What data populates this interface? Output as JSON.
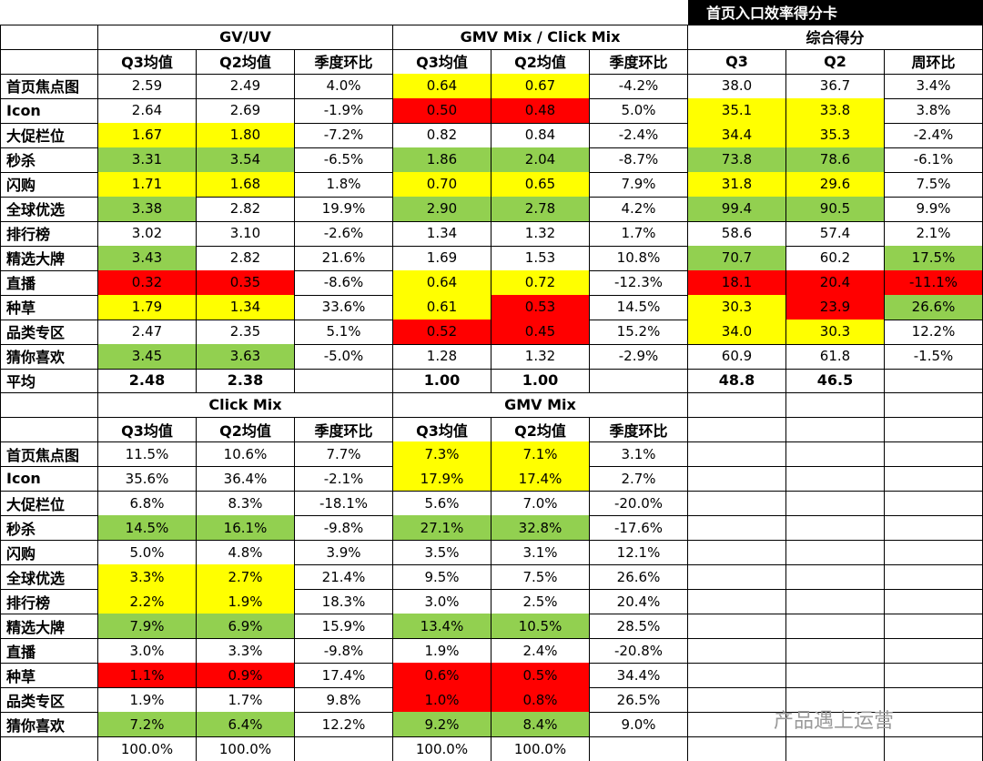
{
  "title": "首页入口效率得分卡",
  "top": {
    "groups": [
      "GV/UV",
      "GMV Mix / Click Mix",
      "综合得分"
    ],
    "subheaders": [
      "Q3均值",
      "Q2均值",
      "季度环比",
      "Q3均值",
      "Q2均值",
      "季度环比",
      "Q3",
      "Q2",
      "周环比"
    ],
    "rows": [
      {
        "label": "首页焦点图",
        "cells": [
          "2.59",
          "2.49",
          "4.0%",
          "0.64",
          "0.67",
          "-4.2%",
          "38.0",
          "36.7",
          "3.4%"
        ],
        "fills": [
          null,
          null,
          null,
          "#ffff00",
          "#ffff00",
          null,
          null,
          null,
          null
        ]
      },
      {
        "label": "Icon",
        "cells": [
          "2.64",
          "2.69",
          "-1.9%",
          "0.50",
          "0.48",
          "5.0%",
          "35.1",
          "33.8",
          "3.8%"
        ],
        "fills": [
          null,
          null,
          null,
          "#ff0000",
          "#ff0000",
          null,
          "#ffff00",
          "#ffff00",
          null
        ]
      },
      {
        "label": "大促栏位",
        "cells": [
          "1.67",
          "1.80",
          "-7.2%",
          "0.82",
          "0.84",
          "-2.4%",
          "34.4",
          "35.3",
          "-2.4%"
        ],
        "fills": [
          "#ffff00",
          "#ffff00",
          null,
          null,
          null,
          null,
          "#ffff00",
          "#ffff00",
          null
        ]
      },
      {
        "label": "秒杀",
        "cells": [
          "3.31",
          "3.54",
          "-6.5%",
          "1.86",
          "2.04",
          "-8.7%",
          "73.8",
          "78.6",
          "-6.1%"
        ],
        "fills": [
          "#92d050",
          "#92d050",
          null,
          "#92d050",
          "#92d050",
          null,
          "#92d050",
          "#92d050",
          null
        ]
      },
      {
        "label": "闪购",
        "cells": [
          "1.71",
          "1.68",
          "1.8%",
          "0.70",
          "0.65",
          "7.9%",
          "31.8",
          "29.6",
          "7.5%"
        ],
        "fills": [
          "#ffff00",
          "#ffff00",
          null,
          "#ffff00",
          "#ffff00",
          null,
          "#ffff00",
          "#ffff00",
          null
        ]
      },
      {
        "label": "全球优选",
        "cells": [
          "3.38",
          "2.82",
          "19.9%",
          "2.90",
          "2.78",
          "4.2%",
          "99.4",
          "90.5",
          "9.9%"
        ],
        "fills": [
          "#92d050",
          null,
          null,
          "#92d050",
          "#92d050",
          null,
          "#92d050",
          "#92d050",
          null
        ]
      },
      {
        "label": "排行榜",
        "cells": [
          "3.02",
          "3.10",
          "-2.6%",
          "1.34",
          "1.32",
          "1.7%",
          "58.6",
          "57.4",
          "2.1%"
        ],
        "fills": [
          null,
          null,
          null,
          null,
          null,
          null,
          null,
          null,
          null
        ]
      },
      {
        "label": "精选大牌",
        "cells": [
          "3.43",
          "2.82",
          "21.6%",
          "1.69",
          "1.53",
          "10.8%",
          "70.7",
          "60.2",
          "17.5%"
        ],
        "fills": [
          "#92d050",
          null,
          null,
          null,
          null,
          null,
          "#92d050",
          null,
          "#92d050"
        ]
      },
      {
        "label": "直播",
        "cells": [
          "0.32",
          "0.35",
          "-8.6%",
          "0.64",
          "0.72",
          "-12.3%",
          "18.1",
          "20.4",
          "-11.1%"
        ],
        "fills": [
          "#ff0000",
          "#ff0000",
          null,
          "#ffff00",
          "#ffff00",
          null,
          "#ff0000",
          "#ff0000",
          "#ff0000"
        ]
      },
      {
        "label": "种草",
        "cells": [
          "1.79",
          "1.34",
          "33.6%",
          "0.61",
          "0.53",
          "14.5%",
          "30.3",
          "23.9",
          "26.6%"
        ],
        "fills": [
          "#ffff00",
          "#ffff00",
          null,
          "#ffff00",
          "#ff0000",
          null,
          "#ffff00",
          "#ff0000",
          "#92d050"
        ]
      },
      {
        "label": "品类专区",
        "cells": [
          "2.47",
          "2.35",
          "5.1%",
          "0.52",
          "0.45",
          "15.2%",
          "34.0",
          "30.3",
          "12.2%"
        ],
        "fills": [
          null,
          null,
          null,
          "#ff0000",
          "#ff0000",
          null,
          "#ffff00",
          "#ffff00",
          null
        ]
      },
      {
        "label": "猜你喜欢",
        "cells": [
          "3.45",
          "3.63",
          "-5.0%",
          "1.28",
          "1.32",
          "-2.9%",
          "60.9",
          "61.8",
          "-1.5%"
        ],
        "fills": [
          "#92d050",
          "#92d050",
          null,
          null,
          null,
          null,
          null,
          null,
          null
        ]
      }
    ],
    "average": {
      "label": "平均",
      "cells": [
        "2.48",
        "2.38",
        null,
        "1.00",
        "1.00",
        null,
        "48.8",
        "46.5",
        null
      ]
    }
  },
  "bottom": {
    "groups": [
      "Click Mix",
      "GMV Mix"
    ],
    "subheaders": [
      "Q3均值",
      "Q2均值",
      "季度环比",
      "Q3均值",
      "Q2均值",
      "季度环比"
    ],
    "rows": [
      {
        "label": "首页焦点图",
        "cells": [
          "11.5%",
          "10.6%",
          "7.7%",
          "7.3%",
          "7.1%",
          "3.1%"
        ],
        "fills": [
          null,
          null,
          null,
          "#ffff00",
          "#ffff00",
          null
        ]
      },
      {
        "label": "Icon",
        "cells": [
          "35.6%",
          "36.4%",
          "-2.1%",
          "17.9%",
          "17.4%",
          "2.7%"
        ],
        "fills": [
          null,
          null,
          null,
          "#ffff00",
          "#ffff00",
          null
        ]
      },
      {
        "label": "大促栏位",
        "cells": [
          "6.8%",
          "8.3%",
          "-18.1%",
          "5.6%",
          "7.0%",
          "-20.0%"
        ],
        "fills": [
          null,
          null,
          null,
          null,
          null,
          null
        ]
      },
      {
        "label": "秒杀",
        "cells": [
          "14.5%",
          "16.1%",
          "-9.8%",
          "27.1%",
          "32.8%",
          "-17.6%"
        ],
        "fills": [
          "#92d050",
          "#92d050",
          null,
          "#92d050",
          "#92d050",
          null
        ]
      },
      {
        "label": "闪购",
        "cells": [
          "5.0%",
          "4.8%",
          "3.9%",
          "3.5%",
          "3.1%",
          "12.1%"
        ],
        "fills": [
          null,
          null,
          null,
          null,
          null,
          null
        ]
      },
      {
        "label": "全球优选",
        "cells": [
          "3.3%",
          "2.7%",
          "21.4%",
          "9.5%",
          "7.5%",
          "26.6%"
        ],
        "fills": [
          "#ffff00",
          "#ffff00",
          null,
          null,
          null,
          null
        ]
      },
      {
        "label": "排行榜",
        "cells": [
          "2.2%",
          "1.9%",
          "18.3%",
          "3.0%",
          "2.5%",
          "20.4%"
        ],
        "fills": [
          "#ffff00",
          "#ffff00",
          null,
          null,
          null,
          null
        ]
      },
      {
        "label": "精选大牌",
        "cells": [
          "7.9%",
          "6.9%",
          "15.9%",
          "13.4%",
          "10.5%",
          "28.5%"
        ],
        "fills": [
          "#92d050",
          "#92d050",
          null,
          "#92d050",
          "#92d050",
          null
        ]
      },
      {
        "label": "直播",
        "cells": [
          "3.0%",
          "3.3%",
          "-9.8%",
          "1.9%",
          "2.4%",
          "-20.8%"
        ],
        "fills": [
          null,
          null,
          null,
          null,
          null,
          null
        ]
      },
      {
        "label": "种草",
        "cells": [
          "1.1%",
          "0.9%",
          "17.4%",
          "0.6%",
          "0.5%",
          "34.4%"
        ],
        "fills": [
          "#ff0000",
          "#ff0000",
          null,
          "#ff0000",
          "#ff0000",
          null
        ]
      },
      {
        "label": "品类专区",
        "cells": [
          "1.9%",
          "1.7%",
          "9.8%",
          "1.0%",
          "0.8%",
          "26.5%"
        ],
        "fills": [
          null,
          null,
          null,
          "#ff0000",
          "#ff0000",
          null
        ]
      },
      {
        "label": "猜你喜欢",
        "cells": [
          "7.2%",
          "6.4%",
          "12.2%",
          "9.2%",
          "8.4%",
          "9.0%"
        ],
        "fills": [
          "#92d050",
          "#92d050",
          null,
          "#92d050",
          "#92d050",
          null
        ]
      }
    ],
    "total": {
      "cells": [
        "100.0%",
        "100.0%",
        null,
        "100.0%",
        "100.0%",
        null
      ]
    }
  },
  "watermark": "产品遇上运营"
}
